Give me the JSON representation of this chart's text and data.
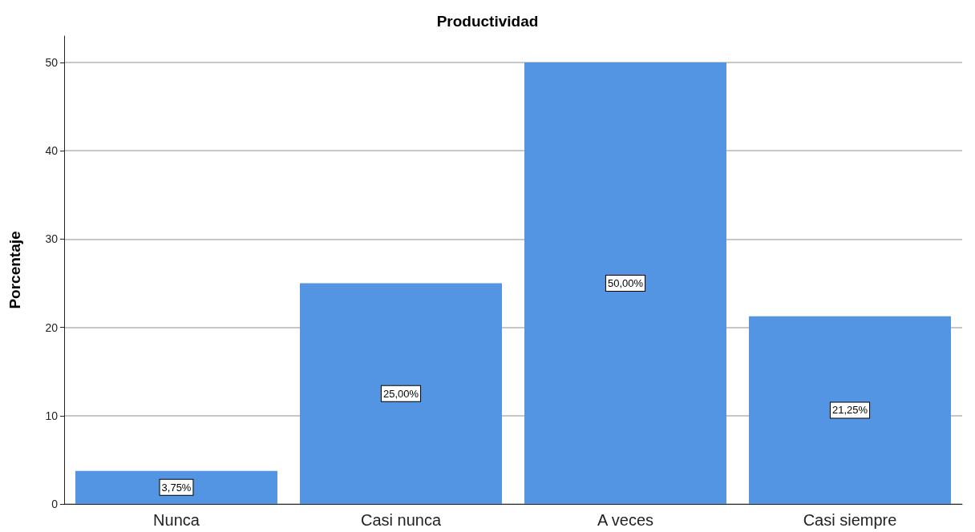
{
  "chart_data": {
    "type": "bar",
    "title": "Productividad",
    "ylabel": "Porcentaje",
    "categories": [
      "Nunca",
      "Casi nunca",
      "A veces",
      "Casi siempre"
    ],
    "values": [
      3.75,
      25,
      50,
      21.25
    ],
    "value_labels": [
      "3,75%",
      "25,00%",
      "50,00%",
      "21,25%"
    ],
    "color": "#5394e3",
    "ylim": [
      0,
      53
    ],
    "yticks": [
      0,
      10,
      20,
      30,
      40,
      50
    ],
    "grid": "y"
  }
}
